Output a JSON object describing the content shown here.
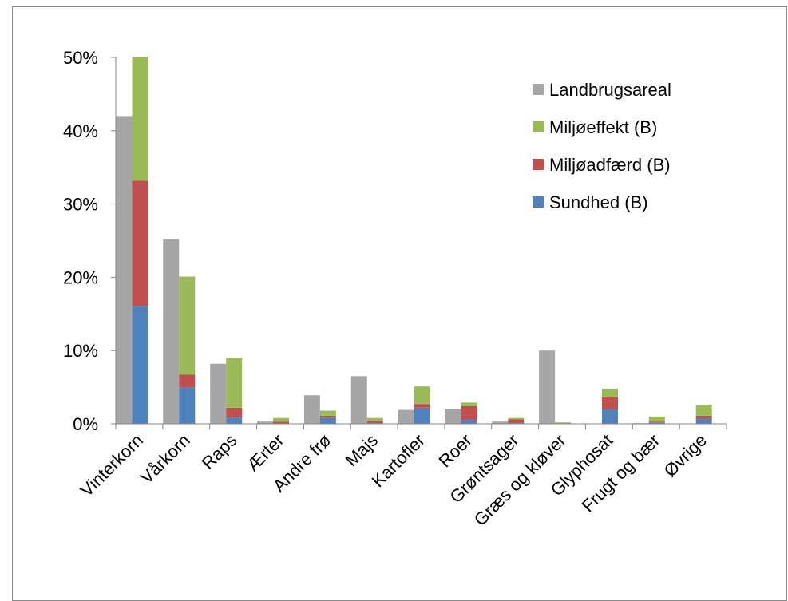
{
  "chart_data": {
    "type": "bar",
    "stacked": true,
    "categories": [
      "Vinterkorn",
      "Vårkorn",
      "Raps",
      "Ærter",
      "Andre frø",
      "Majs",
      "Kartofler",
      "Roer",
      "Grøntsager",
      "Græs og kløver",
      "Glyphosat",
      "Frugt og bær",
      "Øvrige"
    ],
    "series": [
      {
        "name": "Landbrugsareal",
        "stack": "areal",
        "color": "#a6a6a6",
        "values": [
          42,
          25.2,
          8.2,
          0.3,
          3.9,
          6.5,
          1.9,
          2.0,
          0.3,
          10.0,
          0,
          0.1,
          0
        ]
      },
      {
        "name": "Sundhed (B)",
        "stack": "pesticid",
        "color": "#4f81bd",
        "values": [
          16,
          5.0,
          0.8,
          0,
          0.8,
          0.1,
          2.2,
          0.5,
          0.1,
          0,
          2.0,
          0.2,
          0.7
        ]
      },
      {
        "name": "Miljøadfærd (B)",
        "stack": "pesticid",
        "color": "#c0504d",
        "values": [
          17.2,
          1.7,
          1.4,
          0.3,
          0.3,
          0.3,
          0.5,
          1.9,
          0.5,
          0,
          1.6,
          0.1,
          0.4
        ]
      },
      {
        "name": "Miljøeffekt (B)",
        "stack": "pesticid",
        "color": "#9bbb59",
        "values": [
          16.9,
          13.4,
          6.8,
          0.5,
          0.7,
          0.4,
          2.4,
          0.5,
          0.2,
          0.2,
          1.2,
          0.7,
          1.5
        ]
      }
    ],
    "legend": [
      "Landbrugsareal",
      "Miljøeffekt (B)",
      "Miljøadfærd (B)",
      "Sundhed (B)"
    ],
    "legend_position": "top-right",
    "ylim": [
      0,
      50
    ],
    "yticks": [
      "0%",
      "10%",
      "20%",
      "30%",
      "40%",
      "50%"
    ],
    "ytick_values": [
      0,
      10,
      20,
      30,
      40,
      50
    ],
    "grid": false,
    "xlabel": "",
    "ylabel": "",
    "title": ""
  }
}
